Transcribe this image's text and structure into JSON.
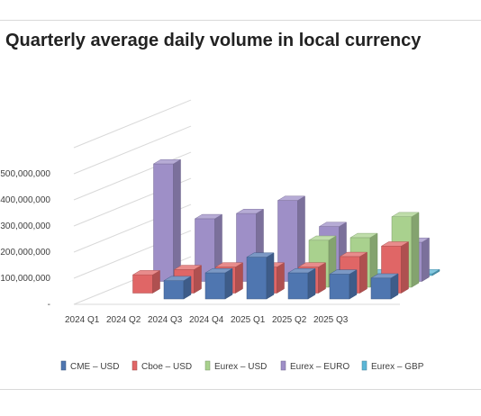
{
  "chart_data": {
    "type": "bar",
    "style": "3d-clustered-column",
    "title": "Quarterly average daily volume in local currency",
    "categories": [
      "2024 Q1",
      "2024 Q2",
      "2024 Q3",
      "2024 Q4",
      "2025 Q1",
      "2025 Q2",
      "2025 Q3"
    ],
    "y_ticks": [
      "-",
      "100,000,000",
      "200,000,000",
      "300,000,000",
      "400,000,000",
      "500,000,000"
    ],
    "ylim": [
      0,
      500000000
    ],
    "grid": true,
    "legend_position": "bottom",
    "series": [
      {
        "name": "CME – USD",
        "color": "#4f76b0",
        "values": [
          0,
          70000000,
          100000000,
          160000000,
          100000000,
          95000000,
          80000000
        ]
      },
      {
        "name": "Cboe – USD",
        "color": "#e06666",
        "values": [
          70000000,
          90000000,
          100000000,
          100000000,
          100000000,
          140000000,
          180000000
        ]
      },
      {
        "name": "Eurex – USD",
        "color": "#a9d18e",
        "values": [
          0,
          0,
          0,
          0,
          180000000,
          190000000,
          270000000
        ]
      },
      {
        "name": "Eurex – EURO",
        "color": "#9e8fc7",
        "values": [
          450000000,
          240000000,
          260000000,
          310000000,
          210000000,
          0,
          150000000
        ]
      },
      {
        "name": "Eurex – GBP",
        "color": "#5cb6d6",
        "values": [
          5000000,
          5000000,
          0,
          0,
          5000000,
          5000000,
          5000000
        ]
      }
    ]
  }
}
